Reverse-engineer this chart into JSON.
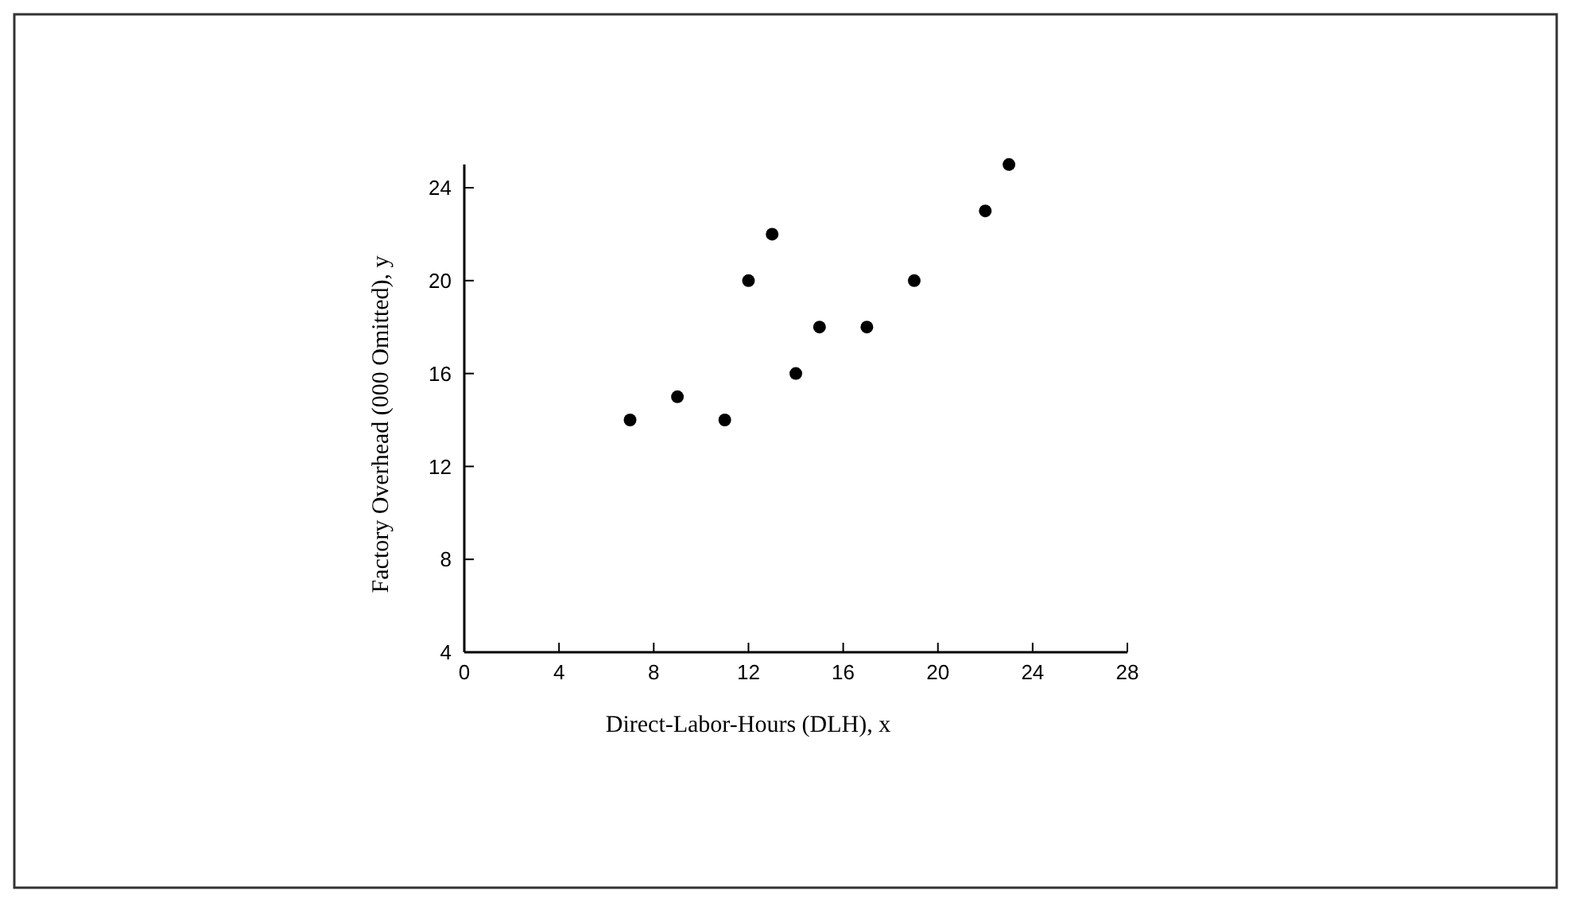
{
  "chart_data": {
    "type": "scatter",
    "xlabel": "Direct-Labor-Hours (DLH), x",
    "ylabel": "Factory Overhead (000 Omitted), y",
    "x": [
      7,
      9,
      11,
      12,
      13,
      14,
      15,
      17,
      19,
      22,
      23
    ],
    "values": [
      14,
      15,
      14,
      20,
      22,
      16,
      18,
      18,
      20,
      23,
      25
    ],
    "color": "#000000",
    "marker": "circle",
    "xlim": [
      0,
      28
    ],
    "xticks": [
      0,
      4,
      8,
      12,
      16,
      20,
      24,
      28
    ],
    "ylim": [
      4,
      25
    ],
    "yticks": [
      4,
      8,
      12,
      16,
      20,
      24
    ]
  }
}
